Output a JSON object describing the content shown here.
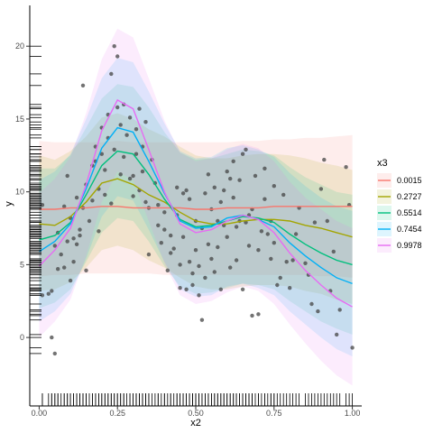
{
  "chart_data": {
    "type": "line",
    "xlabel": "x2",
    "ylabel": "y",
    "xlim": [
      -0.03,
      1.03
    ],
    "ylim": [
      -4.7,
      22.8
    ],
    "x_ticks": [
      0.0,
      0.25,
      0.5,
      0.75,
      1.0
    ],
    "x_tick_labels": [
      "0.00",
      "0.25",
      "0.50",
      "0.75",
      "1.00"
    ],
    "y_ticks": [
      0,
      5,
      10,
      15,
      20
    ],
    "y_tick_labels": [
      "0",
      "5",
      "10",
      "15",
      "20"
    ],
    "grid": false,
    "legend": {
      "title": "x3",
      "position": "right"
    },
    "x": [
      0.0,
      0.05,
      0.1,
      0.15,
      0.2,
      0.25,
      0.3,
      0.35,
      0.4,
      0.45,
      0.5,
      0.55,
      0.6,
      0.65,
      0.7,
      0.75,
      0.8,
      0.85,
      0.9,
      0.95,
      1.0
    ],
    "series": [
      {
        "name": "0.0015",
        "color": "#F8766D",
        "values": [
          8.8,
          8.8,
          8.9,
          8.9,
          9.0,
          9.0,
          8.9,
          8.9,
          8.9,
          8.9,
          8.8,
          8.8,
          8.9,
          8.9,
          8.9,
          9.0,
          9.0,
          9.0,
          9.0,
          9.0,
          9.0
        ],
        "lower": [
          4.2,
          4.3,
          4.3,
          4.4,
          4.4,
          4.4,
          4.4,
          4.4,
          4.3,
          4.3,
          4.3,
          4.3,
          4.3,
          4.3,
          4.3,
          4.3,
          4.3,
          4.3,
          4.2,
          4.2,
          4.1
        ],
        "upper": [
          13.5,
          13.4,
          13.4,
          13.4,
          13.4,
          13.5,
          13.4,
          13.4,
          13.4,
          13.4,
          13.4,
          13.4,
          13.4,
          13.5,
          13.5,
          13.6,
          13.6,
          13.7,
          13.7,
          13.8,
          13.9
        ]
      },
      {
        "name": "0.2727",
        "color": "#A3A500",
        "values": [
          7.8,
          7.7,
          8.3,
          9.3,
          10.6,
          10.9,
          10.5,
          9.8,
          9.3,
          8.6,
          8.0,
          7.8,
          7.8,
          8.0,
          8.1,
          8.1,
          8.0,
          7.7,
          7.5,
          7.2,
          6.9
        ],
        "lower": [
          3.2,
          3.3,
          3.8,
          4.8,
          6.0,
          6.3,
          6.0,
          5.3,
          4.8,
          4.1,
          3.5,
          3.3,
          3.3,
          3.5,
          3.6,
          3.6,
          3.5,
          3.2,
          3.0,
          2.6,
          2.3
        ],
        "upper": [
          12.5,
          12.2,
          12.8,
          13.8,
          15.1,
          15.4,
          15.0,
          14.3,
          13.8,
          13.1,
          12.5,
          12.3,
          12.3,
          12.5,
          12.6,
          12.6,
          12.5,
          12.3,
          12.0,
          11.8,
          11.5
        ]
      },
      {
        "name": "0.5514",
        "color": "#00BF7D",
        "values": [
          6.7,
          7.0,
          7.9,
          9.8,
          11.8,
          12.8,
          12.6,
          11.2,
          9.5,
          8.1,
          7.6,
          7.7,
          8.0,
          8.3,
          8.2,
          7.9,
          7.1,
          6.4,
          5.8,
          5.3,
          5.0
        ],
        "lower": [
          2.0,
          2.4,
          3.3,
          5.2,
          7.2,
          8.2,
          8.0,
          6.6,
          4.9,
          3.5,
          3.0,
          3.1,
          3.4,
          3.7,
          3.6,
          3.3,
          2.5,
          1.8,
          1.1,
          0.6,
          0.2
        ],
        "upper": [
          11.6,
          11.6,
          12.5,
          14.4,
          16.4,
          17.4,
          17.2,
          15.8,
          14.1,
          12.7,
          12.2,
          12.3,
          12.6,
          12.9,
          12.8,
          12.5,
          11.7,
          11.0,
          10.5,
          10.0,
          9.8
        ]
      },
      {
        "name": "0.7454",
        "color": "#00B0F6",
        "values": [
          5.9,
          6.6,
          7.8,
          10.2,
          13.0,
          14.4,
          14.1,
          12.1,
          9.9,
          8.0,
          7.5,
          7.6,
          8.2,
          8.4,
          8.1,
          7.6,
          6.5,
          5.6,
          4.8,
          4.1,
          3.7
        ],
        "lower": [
          1.1,
          1.8,
          3.0,
          5.4,
          8.3,
          9.7,
          9.4,
          7.4,
          5.2,
          3.3,
          2.8,
          2.9,
          3.5,
          3.7,
          3.4,
          2.9,
          1.8,
          0.9,
          0.0,
          -0.8,
          -1.3
        ],
        "upper": [
          10.8,
          11.4,
          12.6,
          15.0,
          17.8,
          19.2,
          18.9,
          16.9,
          14.7,
          12.8,
          12.3,
          12.4,
          13.0,
          13.2,
          12.9,
          12.4,
          11.3,
          10.4,
          9.6,
          9.0,
          8.7
        ]
      },
      {
        "name": "0.9978",
        "color": "#E76BF3",
        "values": [
          4.9,
          6.0,
          7.5,
          10.5,
          14.2,
          16.3,
          15.7,
          12.9,
          10.0,
          7.8,
          7.2,
          7.4,
          8.0,
          8.4,
          8.1,
          7.2,
          5.8,
          4.6,
          3.6,
          2.7,
          2.1
        ],
        "lower": [
          0.0,
          1.1,
          2.6,
          5.6,
          9.3,
          11.4,
          10.8,
          8.0,
          5.1,
          2.9,
          2.3,
          2.5,
          3.1,
          3.5,
          3.2,
          2.3,
          0.9,
          -0.4,
          -1.6,
          -2.6,
          -3.3
        ],
        "upper": [
          9.9,
          10.9,
          12.4,
          15.4,
          19.1,
          21.2,
          20.6,
          17.8,
          14.9,
          12.7,
          12.1,
          12.3,
          12.9,
          13.3,
          13.0,
          12.1,
          10.7,
          9.6,
          8.8,
          8.0,
          7.5
        ]
      }
    ],
    "points": [
      [
        0.01,
        9.1
      ],
      [
        0.01,
        2.9
      ],
      [
        0.03,
        3.0
      ],
      [
        0.04,
        0.0
      ],
      [
        0.05,
        -1.1
      ],
      [
        0.04,
        3.2
      ],
      [
        0.05,
        6.3
      ],
      [
        0.06,
        7.2
      ],
      [
        0.06,
        4.7
      ],
      [
        0.07,
        5.7
      ],
      [
        0.08,
        9.0
      ],
      [
        0.08,
        4.8
      ],
      [
        0.09,
        6.6
      ],
      [
        0.09,
        11.1
      ],
      [
        0.1,
        3.9
      ],
      [
        0.1,
        8.2
      ],
      [
        0.11,
        6.8
      ],
      [
        0.11,
        5.2
      ],
      [
        0.12,
        9.6
      ],
      [
        0.12,
        6.4
      ],
      [
        0.13,
        7.4
      ],
      [
        0.13,
        7.0
      ],
      [
        0.14,
        17.3
      ],
      [
        0.14,
        8.9
      ],
      [
        0.15,
        4.6
      ],
      [
        0.15,
        10.5
      ],
      [
        0.16,
        8.0
      ],
      [
        0.17,
        11.8
      ],
      [
        0.17,
        9.4
      ],
      [
        0.18,
        13.1
      ],
      [
        0.18,
        12.1
      ],
      [
        0.19,
        7.3
      ],
      [
        0.19,
        10.2
      ],
      [
        0.2,
        14.4
      ],
      [
        0.2,
        12.6
      ],
      [
        0.21,
        9.8
      ],
      [
        0.21,
        11.5
      ],
      [
        0.22,
        15.3
      ],
      [
        0.22,
        13.7
      ],
      [
        0.23,
        18.1
      ],
      [
        0.23,
        9.2
      ],
      [
        0.24,
        20.0
      ],
      [
        0.24,
        12.9
      ],
      [
        0.25,
        15.8
      ],
      [
        0.25,
        19.3
      ],
      [
        0.26,
        14.6
      ],
      [
        0.26,
        11.2
      ],
      [
        0.27,
        16.0
      ],
      [
        0.27,
        12.4
      ],
      [
        0.28,
        13.9
      ],
      [
        0.29,
        10.9
      ],
      [
        0.29,
        15.1
      ],
      [
        0.3,
        11.1
      ],
      [
        0.3,
        9.7
      ],
      [
        0.31,
        14.3
      ],
      [
        0.31,
        12.6
      ],
      [
        0.32,
        15.7
      ],
      [
        0.32,
        10.1
      ],
      [
        0.33,
        11.4
      ],
      [
        0.33,
        13.1
      ],
      [
        0.34,
        14.8
      ],
      [
        0.34,
        9.3
      ],
      [
        0.35,
        5.7
      ],
      [
        0.35,
        8.9
      ],
      [
        0.36,
        12.2
      ],
      [
        0.37,
        10.6
      ],
      [
        0.38,
        7.7
      ],
      [
        0.38,
        9.1
      ],
      [
        0.39,
        6.5
      ],
      [
        0.4,
        7.4
      ],
      [
        0.4,
        8.6
      ],
      [
        0.41,
        4.6
      ],
      [
        0.42,
        5.8
      ],
      [
        0.42,
        7.0
      ],
      [
        0.43,
        6.1
      ],
      [
        0.44,
        10.3
      ],
      [
        0.44,
        8.4
      ],
      [
        0.45,
        5.0
      ],
      [
        0.45,
        3.4
      ],
      [
        0.46,
        9.9
      ],
      [
        0.46,
        6.9
      ],
      [
        0.47,
        3.3
      ],
      [
        0.47,
        10.1
      ],
      [
        0.48,
        5.2
      ],
      [
        0.48,
        9.5
      ],
      [
        0.49,
        4.4
      ],
      [
        0.49,
        3.6
      ],
      [
        0.5,
        6.0
      ],
      [
        0.5,
        8.0
      ],
      [
        0.51,
        4.9
      ],
      [
        0.51,
        2.9
      ],
      [
        0.52,
        1.2
      ],
      [
        0.52,
        7.5
      ],
      [
        0.53,
        4.1
      ],
      [
        0.53,
        9.9
      ],
      [
        0.54,
        11.2
      ],
      [
        0.54,
        6.4
      ],
      [
        0.55,
        5.4
      ],
      [
        0.55,
        8.8
      ],
      [
        0.56,
        4.5
      ],
      [
        0.56,
        10.3
      ],
      [
        0.57,
        8.0
      ],
      [
        0.57,
        6.2
      ],
      [
        0.58,
        3.3
      ],
      [
        0.58,
        9.3
      ],
      [
        0.59,
        7.7
      ],
      [
        0.59,
        10.1
      ],
      [
        0.6,
        11.4
      ],
      [
        0.6,
        6.9
      ],
      [
        0.61,
        4.8
      ],
      [
        0.61,
        10.9
      ],
      [
        0.62,
        9.6
      ],
      [
        0.62,
        12.1
      ],
      [
        0.63,
        7.6
      ],
      [
        0.63,
        5.3
      ],
      [
        0.64,
        8.0
      ],
      [
        0.64,
        10.8
      ],
      [
        0.65,
        12.6
      ],
      [
        0.65,
        3.3
      ],
      [
        0.66,
        7.9
      ],
      [
        0.66,
        12.9
      ],
      [
        0.67,
        8.4
      ],
      [
        0.67,
        6.3
      ],
      [
        0.68,
        1.5
      ],
      [
        0.68,
        8.8
      ],
      [
        0.69,
        11.1
      ],
      [
        0.7,
        1.6
      ],
      [
        0.7,
        6.0
      ],
      [
        0.71,
        7.3
      ],
      [
        0.72,
        9.5
      ],
      [
        0.72,
        11.6
      ],
      [
        0.73,
        7.1
      ],
      [
        0.74,
        5.4
      ],
      [
        0.74,
        8.0
      ],
      [
        0.75,
        10.4
      ],
      [
        0.75,
        6.5
      ],
      [
        0.76,
        3.6
      ],
      [
        0.77,
        4.1
      ],
      [
        0.78,
        9.8
      ],
      [
        0.79,
        5.2
      ],
      [
        0.8,
        3.4
      ],
      [
        0.81,
        5.3
      ],
      [
        0.82,
        7.1
      ],
      [
        0.83,
        8.9
      ],
      [
        0.85,
        5.1
      ],
      [
        0.86,
        4.3
      ],
      [
        0.87,
        2.3
      ],
      [
        0.88,
        7.9
      ],
      [
        0.89,
        1.8
      ],
      [
        0.9,
        10.2
      ],
      [
        0.91,
        12.2
      ],
      [
        0.92,
        8.0
      ],
      [
        0.93,
        3.2
      ],
      [
        0.94,
        5.9
      ],
      [
        0.95,
        0.2
      ],
      [
        0.96,
        1.9
      ],
      [
        0.98,
        11.7
      ],
      [
        0.99,
        9.1
      ],
      [
        1.0,
        -0.7
      ]
    ]
  }
}
